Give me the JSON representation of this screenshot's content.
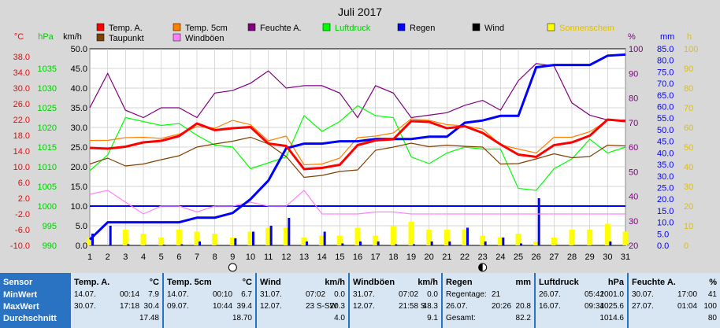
{
  "chart_data": {
    "type": "line",
    "title": "Juli 2017",
    "x": [
      1,
      2,
      3,
      4,
      5,
      6,
      7,
      8,
      9,
      10,
      11,
      12,
      13,
      14,
      15,
      16,
      17,
      18,
      19,
      20,
      21,
      22,
      23,
      24,
      25,
      26,
      27,
      28,
      29,
      30,
      31
    ],
    "axes": {
      "temp": {
        "label": "°C",
        "ticks": [
          "38.0",
          "34.0",
          "30.0",
          "26.0",
          "22.0",
          "18.0",
          "14.0",
          "10.0",
          "6.0",
          "2.0",
          "-2.0",
          "-6.0",
          "-10.0"
        ],
        "range": [
          -10,
          40
        ]
      },
      "hpa": {
        "label": "hPa",
        "ticks": [
          "1035",
          "1030",
          "1025",
          "1020",
          "1015",
          "1010",
          "1005",
          "1000",
          "995",
          "990"
        ],
        "range": [
          990,
          1040
        ]
      },
      "kmh": {
        "label": "km/h",
        "ticks": [
          "50.0",
          "45.0",
          "40.0",
          "35.0",
          "30.0",
          "25.0",
          "20.0",
          "15.0",
          "10.0",
          "5.0",
          "0.0"
        ],
        "range": [
          0,
          50
        ]
      },
      "pct": {
        "label": "%",
        "ticks": [
          "100",
          "90",
          "80",
          "70",
          "60",
          "50",
          "40",
          "30",
          "20"
        ],
        "range": [
          20,
          100
        ]
      },
      "mm": {
        "label": "mm",
        "ticks": [
          "85.0",
          "80.0",
          "75.0",
          "70.0",
          "65.0",
          "60.0",
          "55.0",
          "50.0",
          "45.0",
          "40.0",
          "35.0",
          "30.0",
          "25.0",
          "20.0",
          "15.0",
          "10.0",
          "5.0",
          "0.0"
        ],
        "range": [
          0,
          85
        ]
      },
      "h": {
        "label": "h",
        "ticks": [
          "100",
          "90",
          "80",
          "70",
          "60",
          "50",
          "40",
          "30",
          "20",
          "10",
          "0"
        ],
        "range": [
          0,
          100
        ]
      }
    },
    "legend": [
      {
        "name": "Temp. A.",
        "color": "#ff0000"
      },
      {
        "name": "Temp. 5cm",
        "color": "#ff8000"
      },
      {
        "name": "Feuchte A.",
        "color": "#800080"
      },
      {
        "name": "Luftdruck",
        "color": "#00ff00"
      },
      {
        "name": "Regen",
        "color": "#0000ff"
      },
      {
        "name": "Wind",
        "color": "#000000"
      },
      {
        "name": "Sonnenschein",
        "color": "#ffff00"
      },
      {
        "name": "Taupunkt",
        "color": "#804000"
      },
      {
        "name": "Windböen",
        "color": "#ff80ff"
      }
    ],
    "series": [
      {
        "name": "Temp. A.",
        "axis": "temp",
        "color": "#ff0000",
        "values": [
          14.8,
          14.6,
          15.1,
          16.2,
          16.6,
          17.8,
          21.0,
          19.3,
          19.8,
          20.1,
          15.9,
          15.3,
          9.4,
          9.7,
          10.5,
          15.5,
          16.7,
          17.0,
          21.6,
          21.4,
          19.8,
          20.3,
          18.6,
          15.7,
          13.1,
          12.5,
          15.5,
          16.2,
          17.9,
          22.0,
          21.6
        ]
      },
      {
        "name": "Temp. 5cm",
        "axis": "temp",
        "color": "#ff8000",
        "values": [
          16.7,
          16.7,
          17.4,
          17.5,
          17.2,
          18.3,
          20.2,
          19.8,
          21.8,
          20.7,
          16.6,
          17.8,
          10.5,
          10.7,
          12.2,
          17.4,
          17.8,
          18.6,
          22.2,
          21.8,
          20.7,
          20.4,
          19.6,
          15.6,
          14.5,
          13.5,
          17.5,
          17.5,
          18.9,
          21.8,
          21.6
        ]
      },
      {
        "name": "Taupunkt",
        "axis": "temp",
        "color": "#804000",
        "values": [
          10.7,
          12.2,
          10.2,
          10.7,
          11.8,
          12.8,
          15.0,
          15.8,
          16.5,
          17.5,
          15.8,
          12.6,
          7.3,
          7.8,
          8.8,
          9.2,
          14.2,
          15.0,
          16.0,
          15.1,
          15.5,
          15.2,
          15.0,
          10.7,
          10.8,
          12.0,
          13.3,
          12.3,
          12.6,
          15.5,
          15.3
        ]
      },
      {
        "name": "Windböen",
        "axis": "kmh",
        "color": "#ff80ff",
        "values": [
          13.0,
          14.0,
          11.0,
          8.0,
          10.0,
          10.0,
          8.5,
          10.0,
          10.0,
          11.0,
          10.0,
          10.0,
          14.0,
          8.0,
          8.0,
          8.0,
          8.5,
          8.5,
          8.0,
          8.0,
          8.0,
          8.0,
          8.0,
          8.0,
          8.0,
          8.0,
          8.0,
          8.0,
          8.0,
          8.0,
          8.0
        ]
      },
      {
        "name": "Feuchte A.",
        "axis": "pct",
        "color": "#800080",
        "values": [
          76,
          90,
          75,
          72,
          76,
          76,
          72,
          82,
          83,
          86,
          91,
          84,
          85,
          85,
          82,
          72,
          85,
          82,
          72,
          73,
          74,
          77,
          79,
          75,
          87,
          94,
          93,
          78,
          73,
          71,
          71
        ]
      },
      {
        "name": "Luftdruck",
        "axis": "hpa",
        "color": "#00ff00",
        "values": [
          1009.0,
          1013.0,
          1022.5,
          1021.5,
          1020.5,
          1021.0,
          1018.0,
          1015.5,
          1015.0,
          1009.5,
          1011.0,
          1012.5,
          1023.0,
          1019.0,
          1021.5,
          1025.5,
          1023.0,
          1022.5,
          1012.5,
          1010.8,
          1013.5,
          1015.0,
          1014.5,
          1014.5,
          1004.5,
          1004.0,
          1009.5,
          1012.0,
          1017.0,
          1013.5,
          1015.0
        ]
      },
      {
        "name": "Regen",
        "axis": "mm",
        "color": "#0000ff",
        "values": [
          2.5,
          10.0,
          10.0,
          10.0,
          10.0,
          10.0,
          12.0,
          12.0,
          14.0,
          20.0,
          28.0,
          42.0,
          44.0,
          44.0,
          45.0,
          45.0,
          46.0,
          46.0,
          46.0,
          47.0,
          47.0,
          53.0,
          54.0,
          56.0,
          56.0,
          77.0,
          78.0,
          78.0,
          78.0,
          82.0,
          82.5
        ]
      },
      {
        "name": "Wind",
        "axis": "kmh",
        "color": "#0000ff",
        "type": "bar",
        "values": [
          3.0,
          5.0,
          0.3,
          0.1,
          0.2,
          0.3,
          1.0,
          0.1,
          1.8,
          3.5,
          5.0,
          7.0,
          1.0,
          3.5,
          0.5,
          1.0,
          1.0,
          0.3,
          0.3,
          1.0,
          1.0,
          4.5,
          1.0,
          2.0,
          0.5,
          12.0,
          0.1,
          0.1,
          0.1,
          1.0,
          0.1
        ]
      },
      {
        "name": "Sonnenschein",
        "axis": "h",
        "color": "#ffff00",
        "type": "bar",
        "values": [
          4,
          0,
          8,
          6,
          4,
          8,
          7,
          6,
          4,
          7,
          9,
          9,
          4,
          5,
          5,
          9,
          5,
          10,
          12,
          8,
          8,
          8,
          5,
          4,
          6,
          2,
          4,
          8,
          8,
          11,
          7
        ]
      }
    ],
    "moon_phases": [
      {
        "day": 9,
        "phase": "full"
      },
      {
        "day": 23,
        "phase": "new"
      }
    ],
    "grid": true
  },
  "table": [
    {
      "sensor": "Sensor",
      "rows": [
        "MinWert",
        "MaxWert",
        "Durchschnitt"
      ]
    },
    {
      "title": "Temp. A.",
      "unit": "°C",
      "rows": [
        [
          "14.07.",
          "00:14",
          "7.9"
        ],
        [
          "30.07.",
          "17:18",
          "30.4"
        ],
        [
          "",
          "",
          "17.48"
        ]
      ]
    },
    {
      "title": "Temp. 5cm",
      "unit": "°C",
      "rows": [
        [
          "14.07.",
          "00:10",
          "6.7"
        ],
        [
          "09.07.",
          "10:44",
          "39.4"
        ],
        [
          "",
          "",
          "18.70"
        ]
      ]
    },
    {
      "title": "Wind",
      "unit": "km/h",
      "rows": [
        [
          "31.07.",
          "07:02",
          "0.0"
        ],
        [
          "12.07.",
          "23 S-SW",
          "20.3"
        ],
        [
          "",
          "",
          "4.0"
        ]
      ]
    },
    {
      "title": "Windböen",
      "unit": "km/h",
      "rows": [
        [
          "31.07.",
          "07:02",
          "0.0"
        ],
        [
          "12.07.",
          "21:58 S",
          "48.3"
        ],
        [
          "",
          "",
          "9.1"
        ]
      ]
    },
    {
      "title": "Regen",
      "unit": "mm",
      "rows": [
        [
          "Regentage:",
          "21",
          ""
        ],
        [
          "26.07.",
          "20:26",
          "20.8"
        ],
        [
          "Gesamt:",
          "",
          "82.2"
        ]
      ]
    },
    {
      "title": "Luftdruck",
      "unit": "hPa",
      "rows": [
        [
          "26.07.",
          "05:42",
          "1001.0"
        ],
        [
          "16.07.",
          "09:34",
          "1025.6"
        ],
        [
          "",
          "",
          "1014.6"
        ]
      ]
    },
    {
      "title": "Feuchte A.",
      "unit": "%",
      "rows": [
        [
          "30.07.",
          "17:00",
          "41"
        ],
        [
          "27.07.",
          "01:04",
          "100"
        ],
        [
          "",
          "",
          "80"
        ]
      ]
    }
  ]
}
